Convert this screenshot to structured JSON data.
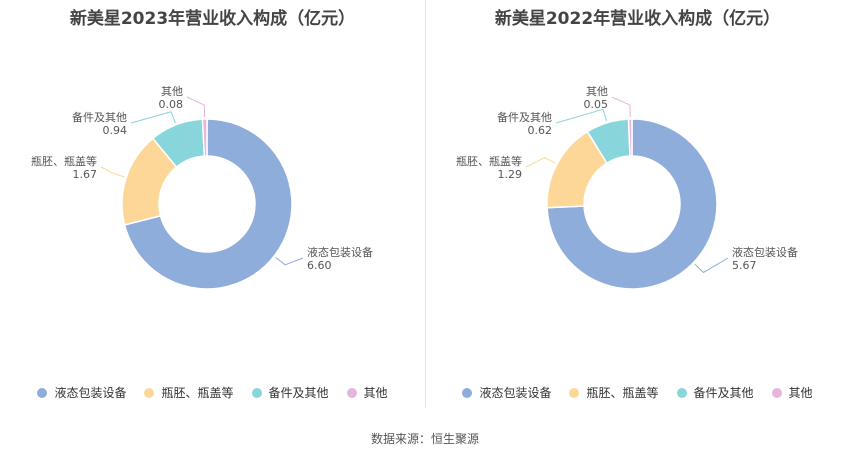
{
  "colors": [
    "#8eaddb",
    "#fdd797",
    "#89d5dc",
    "#e6b5dc"
  ],
  "chart_data": [
    {
      "type": "pie",
      "title": "新美星2023年营业收入构成（亿元）",
      "categories": [
        "液态包装设备",
        "瓶胚、瓶盖等",
        "备件及其他",
        "其他"
      ],
      "values": [
        6.6,
        1.67,
        0.94,
        0.08
      ],
      "value_labels": [
        "6.60",
        "1.67",
        "0.94",
        "0.08"
      ],
      "donut": true,
      "legend": "bottom"
    },
    {
      "type": "pie",
      "title": "新美星2022年营业收入构成（亿元）",
      "categories": [
        "液态包装设备",
        "瓶胚、瓶盖等",
        "备件及其他",
        "其他"
      ],
      "values": [
        5.67,
        1.29,
        0.62,
        0.05
      ],
      "value_labels": [
        "5.67",
        "1.29",
        "0.62",
        "0.05"
      ],
      "donut": true,
      "legend": "bottom"
    }
  ],
  "footer": {
    "source": "数据来源：恒生聚源"
  }
}
